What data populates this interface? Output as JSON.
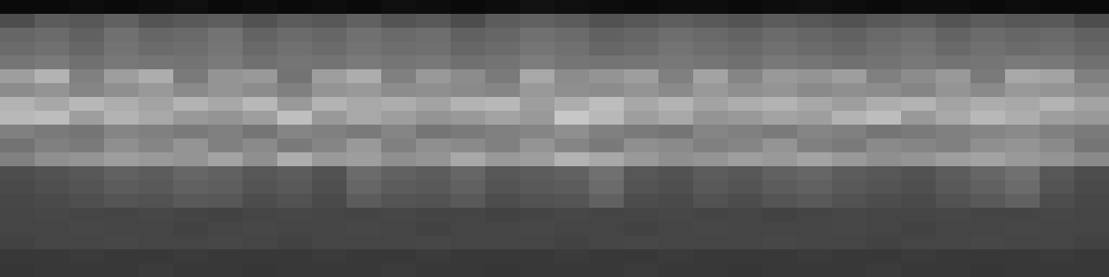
{
  "chart_data": {
    "type": "heatmap",
    "tick_labels": false,
    "zlim": [
      0,
      100
    ],
    "cells": [
      [
        4,
        4,
        5,
        4,
        5,
        6,
        4,
        5,
        4,
        5,
        4,
        6,
        5,
        4,
        5,
        7,
        6,
        5,
        4,
        5,
        5,
        4,
        5,
        6,
        5,
        4,
        5,
        5,
        4,
        5,
        4,
        4
      ],
      [
        30,
        36,
        34,
        38,
        33,
        35,
        37,
        32,
        36,
        34,
        38,
        33,
        35,
        30,
        36,
        38,
        36,
        32,
        34,
        37,
        35,
        33,
        36,
        34,
        32,
        35,
        37,
        33,
        36,
        34,
        35,
        30
      ],
      [
        40,
        42,
        38,
        44,
        40,
        41,
        45,
        39,
        42,
        40,
        44,
        41,
        43,
        38,
        40,
        44,
        42,
        38,
        40,
        43,
        41,
        39,
        42,
        40,
        38,
        41,
        43,
        39,
        42,
        40,
        41,
        38
      ],
      [
        42,
        44,
        40,
        45,
        42,
        43,
        46,
        41,
        44,
        42,
        45,
        43,
        44,
        40,
        42,
        46,
        44,
        40,
        42,
        45,
        43,
        41,
        44,
        42,
        40,
        43,
        45,
        41,
        44,
        42,
        43,
        40
      ],
      [
        46,
        48,
        44,
        47,
        46,
        45,
        48,
        44,
        46,
        45,
        48,
        46,
        47,
        44,
        45,
        49,
        46,
        45,
        46,
        47,
        46,
        44,
        47,
        46,
        44,
        45,
        47,
        45,
        46,
        48,
        47,
        44
      ],
      [
        62,
        70,
        50,
        62,
        68,
        48,
        58,
        60,
        45,
        62,
        68,
        50,
        60,
        55,
        48,
        66,
        55,
        58,
        62,
        50,
        64,
        52,
        60,
        58,
        62,
        50,
        55,
        60,
        48,
        66,
        64,
        50
      ],
      [
        55,
        58,
        52,
        56,
        60,
        54,
        58,
        55,
        50,
        58,
        60,
        55,
        56,
        54,
        52,
        60,
        56,
        55,
        58,
        54,
        60,
        56,
        58,
        54,
        56,
        55,
        52,
        58,
        54,
        60,
        58,
        55
      ],
      [
        70,
        66,
        72,
        68,
        64,
        70,
        66,
        72,
        60,
        70,
        66,
        68,
        64,
        70,
        72,
        62,
        68,
        74,
        66,
        70,
        64,
        68,
        70,
        66,
        62,
        68,
        70,
        64,
        68,
        66,
        70,
        64
      ],
      [
        72,
        74,
        62,
        70,
        66,
        60,
        58,
        62,
        75,
        60,
        66,
        62,
        58,
        60,
        64,
        60,
        78,
        72,
        62,
        66,
        58,
        60,
        64,
        62,
        70,
        74,
        60,
        66,
        72,
        68,
        62,
        60
      ],
      [
        50,
        48,
        46,
        52,
        50,
        48,
        50,
        46,
        52,
        50,
        48,
        52,
        46,
        48,
        50,
        52,
        56,
        50,
        48,
        46,
        52,
        50,
        48,
        52,
        50,
        46,
        48,
        50,
        52,
        54,
        50,
        48
      ],
      [
        45,
        50,
        48,
        56,
        52,
        58,
        50,
        54,
        48,
        52,
        60,
        50,
        56,
        54,
        50,
        58,
        52,
        48,
        56,
        54,
        50,
        52,
        58,
        50,
        48,
        54,
        52,
        50,
        56,
        58,
        54,
        46
      ],
      [
        50,
        56,
        58,
        62,
        60,
        58,
        64,
        56,
        68,
        60,
        62,
        56,
        58,
        66,
        60,
        62,
        70,
        66,
        60,
        56,
        58,
        62,
        60,
        64,
        60,
        56,
        58,
        62,
        64,
        60,
        58,
        54
      ],
      [
        30,
        32,
        34,
        38,
        36,
        40,
        38,
        34,
        36,
        32,
        42,
        38,
        36,
        40,
        34,
        36,
        38,
        44,
        34,
        32,
        36,
        34,
        38,
        40,
        36,
        34,
        32,
        36,
        40,
        44,
        34,
        30
      ],
      [
        29,
        31,
        33,
        36,
        35,
        38,
        37,
        33,
        35,
        31,
        40,
        36,
        35,
        38,
        33,
        35,
        36,
        42,
        33,
        31,
        35,
        33,
        36,
        38,
        35,
        33,
        31,
        35,
        38,
        42,
        33,
        29
      ],
      [
        28,
        29,
        31,
        33,
        32,
        35,
        34,
        30,
        32,
        29,
        36,
        33,
        32,
        35,
        30,
        32,
        33,
        38,
        30,
        29,
        32,
        30,
        33,
        35,
        32,
        30,
        29,
        32,
        35,
        38,
        30,
        28
      ],
      [
        27,
        28,
        27,
        27,
        28,
        27,
        26,
        27,
        28,
        27,
        27,
        28,
        27,
        27,
        26,
        27,
        28,
        27,
        27,
        28,
        27,
        27,
        26,
        27,
        28,
        27,
        27,
        28,
        27,
        27,
        28,
        27
      ],
      [
        27,
        27,
        28,
        27,
        27,
        26,
        27,
        28,
        27,
        27,
        28,
        27,
        26,
        27,
        27,
        28,
        27,
        27,
        26,
        27,
        28,
        27,
        27,
        27,
        28,
        27,
        26,
        27,
        27,
        28,
        27,
        27
      ],
      [
        26,
        27,
        27,
        28,
        27,
        27,
        28,
        27,
        26,
        27,
        27,
        27,
        28,
        27,
        27,
        27,
        26,
        27,
        28,
        27,
        27,
        27,
        28,
        27,
        27,
        26,
        27,
        27,
        28,
        27,
        27,
        26
      ],
      [
        22,
        22,
        23,
        22,
        22,
        23,
        22,
        22,
        22,
        23,
        22,
        22,
        23,
        22,
        22,
        22,
        23,
        22,
        22,
        23,
        22,
        22,
        22,
        23,
        22,
        22,
        23,
        22,
        22,
        22,
        23,
        22
      ],
      [
        21,
        22,
        22,
        22,
        23,
        22,
        22,
        21,
        22,
        22,
        22,
        23,
        22,
        22,
        21,
        22,
        22,
        22,
        23,
        22,
        22,
        21,
        22,
        22,
        22,
        23,
        22,
        22,
        21,
        22,
        22,
        22
      ]
    ]
  }
}
